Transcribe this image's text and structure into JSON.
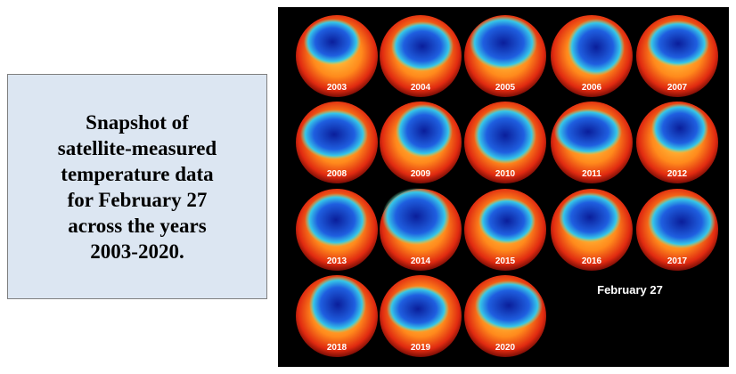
{
  "caption": {
    "lines": [
      "Snapshot of",
      "satellite-measured",
      "temperature data",
      "for February 27",
      "across the years",
      "2003-2020."
    ]
  },
  "figure": {
    "years": [
      "2003",
      "2004",
      "2005",
      "2006",
      "2007",
      "2008",
      "2009",
      "2010",
      "2011",
      "2012",
      "2013",
      "2014",
      "2015",
      "2016",
      "2017",
      "2018",
      "2019",
      "2020"
    ],
    "date_label": "February 27"
  }
}
